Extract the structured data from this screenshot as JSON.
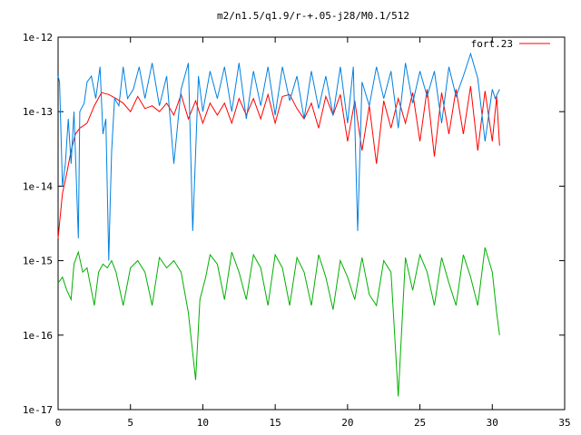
{
  "chart_data": {
    "type": "line",
    "title": "m2/n1.5/q1.9/r-+.05-j28/M0.1/512",
    "xlabel": "",
    "ylabel": "",
    "xlim": [
      0,
      35
    ],
    "ylim": [
      1e-17,
      1e-12
    ],
    "yscale": "log",
    "x_ticks": [
      0,
      5,
      10,
      15,
      20,
      25,
      30,
      35
    ],
    "x_tick_labels": [
      "0",
      "5",
      "10",
      "15",
      "20",
      "25",
      "30",
      "35"
    ],
    "y_ticks": [
      1e-12,
      1e-13,
      1e-14,
      1e-15,
      1e-16,
      1e-17
    ],
    "y_tick_labels": [
      "1e-12",
      "1e-13",
      "1e-14",
      "1e-15",
      "1e-16",
      "1e-17"
    ],
    "grid": false,
    "legend_position": "top-right",
    "series": [
      {
        "name": "fort.23",
        "color": "#ff0000",
        "x": [
          0,
          0.3,
          0.6,
          0.9,
          1.2,
          1.5,
          2.0,
          2.5,
          3.0,
          3.5,
          4.0,
          4.5,
          5.0,
          5.5,
          6.0,
          6.5,
          7.0,
          7.5,
          8.0,
          8.5,
          9.0,
          9.5,
          10.0,
          10.5,
          11.0,
          11.5,
          12.0,
          12.5,
          13.0,
          13.5,
          14.0,
          14.5,
          15.0,
          15.5,
          16.0,
          16.5,
          17.0,
          17.5,
          18.0,
          18.5,
          19.0,
          19.5,
          20.0,
          20.5,
          21.0,
          21.5,
          22.0,
          22.5,
          23.0,
          23.5,
          24.0,
          24.5,
          25.0,
          25.5,
          26.0,
          26.5,
          27.0,
          27.5,
          28.0,
          28.5,
          29.0,
          29.5,
          30.0,
          30.3,
          30.5
        ],
        "y": [
          2e-15,
          8e-15,
          1.5e-14,
          3e-14,
          5e-14,
          6e-14,
          7e-14,
          1.2e-13,
          1.8e-13,
          1.7e-13,
          1.5e-13,
          1.3e-13,
          1e-13,
          1.6e-13,
          1.1e-13,
          1.2e-13,
          1e-13,
          1.3e-13,
          9e-14,
          1.7e-13,
          8e-14,
          1.4e-13,
          7e-14,
          1.3e-13,
          9e-14,
          1.3e-13,
          7e-14,
          1.5e-13,
          9e-14,
          1.5e-13,
          8e-14,
          1.7e-13,
          7e-14,
          1.6e-13,
          1.7e-13,
          1.1e-13,
          8e-14,
          1.3e-13,
          6e-14,
          1.6e-13,
          9e-14,
          1.7e-13,
          4e-14,
          1.4e-13,
          3e-14,
          1.2e-13,
          2e-14,
          1.4e-13,
          6e-14,
          1.5e-13,
          7e-14,
          1.8e-13,
          4e-14,
          2e-13,
          2.5e-14,
          1.8e-13,
          5e-14,
          2e-13,
          5e-14,
          2.2e-13,
          3e-14,
          1.9e-13,
          4e-14,
          1.6e-13,
          3.5e-14
        ]
      },
      {
        "name": "",
        "color": "#0080e0",
        "x": [
          0,
          0.1,
          0.3,
          0.5,
          0.7,
          0.9,
          1.1,
          1.4,
          1.5,
          1.8,
          2.0,
          2.3,
          2.6,
          2.9,
          3.1,
          3.3,
          3.5,
          3.6,
          3.7,
          3.9,
          4.2,
          4.5,
          4.8,
          5.2,
          5.6,
          6.0,
          6.5,
          7.0,
          7.5,
          8.0,
          8.5,
          9.0,
          9.3,
          9.7,
          10.0,
          10.5,
          11.0,
          11.5,
          12.0,
          12.5,
          13.0,
          13.5,
          14.0,
          14.5,
          15.0,
          15.5,
          16.0,
          16.5,
          17.0,
          17.5,
          18.0,
          18.5,
          19.0,
          19.5,
          20.0,
          20.4,
          20.7,
          21.0,
          21.5,
          22.0,
          22.5,
          23.0,
          23.5,
          24.0,
          24.5,
          25.0,
          25.5,
          26.0,
          26.5,
          27.0,
          27.5,
          28.0,
          28.5,
          29.0,
          29.5,
          30.0,
          30.2,
          30.5
        ],
        "y": [
          3e-13,
          2.5e-13,
          1e-14,
          2e-14,
          8e-14,
          2e-14,
          1e-13,
          2e-15,
          1e-13,
          1.3e-13,
          2.5e-13,
          3e-13,
          1.5e-13,
          4e-13,
          5e-14,
          8e-14,
          1e-15,
          6e-15,
          3e-14,
          1.5e-13,
          1.2e-13,
          4e-13,
          1.5e-13,
          2e-13,
          4e-13,
          1.5e-13,
          4.5e-13,
          1.2e-13,
          3e-13,
          2e-14,
          2e-13,
          4.5e-13,
          2.5e-15,
          3e-13,
          1e-13,
          3.5e-13,
          1.5e-13,
          4e-13,
          1e-13,
          4.5e-13,
          8e-14,
          3.5e-13,
          1.2e-13,
          4e-13,
          9e-14,
          4e-13,
          1.4e-13,
          3e-13,
          8e-14,
          3.5e-13,
          1.1e-13,
          3e-13,
          9e-14,
          4e-13,
          7e-14,
          4e-13,
          2.5e-15,
          2.5e-13,
          1.2e-13,
          4e-13,
          1.5e-13,
          3.5e-13,
          6e-14,
          4.5e-13,
          1.3e-13,
          3.5e-13,
          1.6e-13,
          3.5e-13,
          7e-14,
          4e-13,
          1.6e-13,
          3e-13,
          6e-13,
          2.8e-13,
          4e-14,
          2e-13,
          1.5e-13,
          2e-13
        ]
      },
      {
        "name": "",
        "color": "#00b000",
        "x": [
          0,
          0.3,
          0.6,
          0.9,
          1.1,
          1.4,
          1.7,
          2.0,
          2.3,
          2.5,
          2.8,
          3.1,
          3.4,
          3.7,
          4.0,
          4.5,
          5.0,
          5.5,
          6.0,
          6.5,
          7.0,
          7.5,
          8.0,
          8.5,
          9.0,
          9.5,
          9.8,
          10.2,
          10.5,
          11.0,
          11.5,
          12.0,
          12.5,
          13.0,
          13.5,
          14.0,
          14.5,
          15.0,
          15.5,
          16.0,
          16.5,
          17.0,
          17.5,
          18.0,
          18.5,
          19.0,
          19.5,
          20.0,
          20.5,
          21.0,
          21.5,
          22.0,
          22.5,
          23.0,
          23.5,
          24.0,
          24.5,
          25.0,
          25.5,
          26.0,
          26.5,
          27.0,
          27.5,
          28.0,
          28.5,
          29.0,
          29.5,
          30.0,
          30.3,
          30.5
        ],
        "y": [
          5e-16,
          6e-16,
          4e-16,
          3e-16,
          9e-16,
          1.3e-15,
          7e-16,
          8e-16,
          4e-16,
          2.5e-16,
          7e-16,
          9e-16,
          8e-16,
          1e-15,
          7e-16,
          2.5e-16,
          8e-16,
          1e-15,
          7e-16,
          2.5e-16,
          1.1e-15,
          8e-16,
          1e-15,
          7e-16,
          2e-16,
          2.5e-17,
          3e-16,
          6e-16,
          1.2e-15,
          9e-16,
          3e-16,
          1.3e-15,
          7e-16,
          3e-16,
          1.2e-15,
          8e-16,
          2.5e-16,
          1.2e-15,
          8e-16,
          2.5e-16,
          1.1e-15,
          7e-16,
          2.5e-16,
          1.2e-15,
          6e-16,
          2.2e-16,
          1e-15,
          6e-16,
          3e-16,
          1.1e-15,
          3.5e-16,
          2.5e-16,
          1e-15,
          7e-16,
          1.5e-17,
          1.1e-15,
          4e-16,
          1.2e-15,
          7e-16,
          2.5e-16,
          1.1e-15,
          5e-16,
          2.5e-16,
          1.2e-15,
          6e-16,
          2.5e-16,
          1.5e-15,
          7e-16,
          2e-16,
          1e-16
        ]
      }
    ]
  }
}
